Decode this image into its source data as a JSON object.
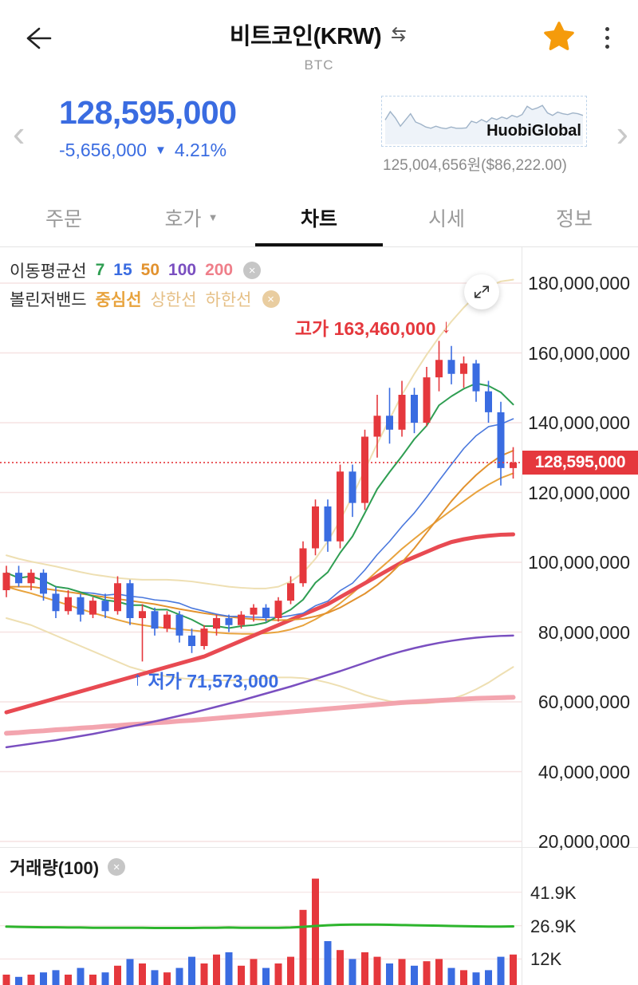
{
  "header": {
    "title": "비트코인(KRW)",
    "subtitle": "BTC"
  },
  "icons": {
    "close": "×",
    "caret_down": "▼",
    "triangle_down": "▼",
    "arrow_down": "↓",
    "arrow_up": "↑",
    "chevron_left": "‹",
    "chevron_right": "›"
  },
  "price": {
    "current": "128,595,000",
    "change": "-5,656,000",
    "change_pct": "4.21%",
    "exchange": "HuobiGlobal",
    "reference": "125,004,656원($86,222.00)"
  },
  "tabs": [
    {
      "label": "주문"
    },
    {
      "label": "호가"
    },
    {
      "label": "차트"
    },
    {
      "label": "시세"
    },
    {
      "label": "정보"
    }
  ],
  "active_tab": "차트",
  "legend": {
    "ma_title": "이동평균선",
    "ma_periods": [
      "7",
      "15",
      "50",
      "100",
      "200"
    ],
    "boll_title": "볼린저밴드",
    "boll_items": [
      "중심선",
      "상한선",
      "하한선"
    ]
  },
  "annotations": {
    "high_label": "고가 163,460,000",
    "low_label": "저가 71,573,000"
  },
  "axis": {
    "main": [
      "180,000,000",
      "160,000,000",
      "140,000,000",
      "120,000,000",
      "100,000,000",
      "80,000,000",
      "60,000,000",
      "40,000,000",
      "20,000,000"
    ],
    "volume": [
      "41.9K",
      "26.9K",
      "12K"
    ]
  },
  "price_tag": "128,595,000",
  "volume_panel": {
    "label": "거래량(100)"
  },
  "colors": {
    "accent_blue": "#3a6ce1",
    "up_red": "#e5383d",
    "down_blue": "#3a6ce1",
    "price_tag_bg": "#e5383d",
    "grid_pink": "#f6e2e2",
    "ma7_green": "#2f9e52",
    "ma15_blue": "#4a78dd",
    "ma50_orange": "#e2922e",
    "ma100_purple": "#7a4fc0",
    "ma200_pink": "#f29ba6",
    "trend_red": "#e84a52",
    "boll_band": "#eedfb2",
    "boll_center": "#e8a33d",
    "vol_ma_green": "#2db52d",
    "star_orange": "#f59b0b",
    "spark_line": "#9fb3c8"
  },
  "chart_data": {
    "type": "candlestick+volume",
    "y_unit": "KRW millions",
    "y_range_main": [
      20,
      185
    ],
    "gridlines": [
      20,
      40,
      60,
      80,
      100,
      120,
      140,
      160,
      180
    ],
    "current_price": 128.595,
    "high_marker": 163.46,
    "low_marker": 71.573,
    "candles": [
      {
        "o": 92,
        "h": 99,
        "l": 90,
        "c": 97
      },
      {
        "o": 97,
        "h": 99,
        "l": 93,
        "c": 94
      },
      {
        "o": 94,
        "h": 98,
        "l": 92,
        "c": 97
      },
      {
        "o": 97,
        "h": 98,
        "l": 89,
        "c": 91
      },
      {
        "o": 91,
        "h": 93,
        "l": 84,
        "c": 86
      },
      {
        "o": 86,
        "h": 92,
        "l": 85,
        "c": 90
      },
      {
        "o": 90,
        "h": 91,
        "l": 83,
        "c": 85
      },
      {
        "o": 85,
        "h": 90,
        "l": 84,
        "c": 89
      },
      {
        "o": 89,
        "h": 91,
        "l": 84,
        "c": 86
      },
      {
        "o": 86,
        "h": 96,
        "l": 85,
        "c": 94
      },
      {
        "o": 94,
        "h": 95,
        "l": 82,
        "c": 84
      },
      {
        "o": 84,
        "h": 88,
        "l": 71.573,
        "c": 86
      },
      {
        "o": 86,
        "h": 87,
        "l": 79,
        "c": 81
      },
      {
        "o": 81,
        "h": 86,
        "l": 80,
        "c": 85
      },
      {
        "o": 85,
        "h": 86,
        "l": 77,
        "c": 79
      },
      {
        "o": 79,
        "h": 81,
        "l": 74,
        "c": 76
      },
      {
        "o": 76,
        "h": 82,
        "l": 75,
        "c": 81
      },
      {
        "o": 81,
        "h": 85,
        "l": 79,
        "c": 84
      },
      {
        "o": 84,
        "h": 85,
        "l": 80,
        "c": 82
      },
      {
        "o": 82,
        "h": 86,
        "l": 81,
        "c": 85
      },
      {
        "o": 85,
        "h": 88,
        "l": 83,
        "c": 87
      },
      {
        "o": 87,
        "h": 88,
        "l": 83,
        "c": 84
      },
      {
        "o": 84,
        "h": 90,
        "l": 83,
        "c": 89
      },
      {
        "o": 89,
        "h": 96,
        "l": 88,
        "c": 94
      },
      {
        "o": 94,
        "h": 106,
        "l": 93,
        "c": 104
      },
      {
        "o": 104,
        "h": 118,
        "l": 102,
        "c": 116
      },
      {
        "o": 116,
        "h": 118,
        "l": 103,
        "c": 106
      },
      {
        "o": 106,
        "h": 128,
        "l": 104,
        "c": 126
      },
      {
        "o": 126,
        "h": 128,
        "l": 113,
        "c": 117
      },
      {
        "o": 117,
        "h": 138,
        "l": 115,
        "c": 136
      },
      {
        "o": 136,
        "h": 148,
        "l": 130,
        "c": 142
      },
      {
        "o": 142,
        "h": 150,
        "l": 134,
        "c": 138
      },
      {
        "o": 138,
        "h": 152,
        "l": 136,
        "c": 148
      },
      {
        "o": 148,
        "h": 150,
        "l": 137,
        "c": 140
      },
      {
        "o": 140,
        "h": 156,
        "l": 139,
        "c": 153
      },
      {
        "o": 153,
        "h": 163.46,
        "l": 149,
        "c": 158
      },
      {
        "o": 158,
        "h": 162,
        "l": 151,
        "c": 154
      },
      {
        "o": 154,
        "h": 159,
        "l": 150,
        "c": 157
      },
      {
        "o": 157,
        "h": 158,
        "l": 146,
        "c": 149
      },
      {
        "o": 149,
        "h": 152,
        "l": 140,
        "c": 143
      },
      {
        "o": 143,
        "h": 146,
        "l": 122,
        "c": 127
      },
      {
        "o": 127,
        "h": 133,
        "l": 124,
        "c": 128.595
      }
    ],
    "volumes_k": [
      5,
      4,
      5,
      6,
      7,
      5,
      8,
      5,
      6,
      9,
      12,
      10,
      7,
      6,
      8,
      13,
      10,
      14,
      15,
      9,
      12,
      8,
      10,
      13,
      34,
      48,
      20,
      16,
      12,
      15,
      13,
      10,
      12,
      9,
      11,
      12,
      8,
      7,
      6,
      7,
      13,
      14
    ],
    "volume_axis_k": [
      41.9,
      26.9,
      12
    ],
    "vol_ma": [
      26.5,
      26.4,
      26.3,
      26.2,
      26.2,
      26.1,
      26.1,
      26.0,
      26.0,
      26.0,
      26.0,
      26.0,
      25.9,
      25.9,
      25.9,
      25.9,
      26.0,
      26.0,
      26.1,
      26.0,
      26.0,
      26.0,
      26.0,
      26.1,
      26.4,
      26.8,
      27.1,
      27.3,
      27.4,
      27.4,
      27.4,
      27.3,
      27.2,
      27.1,
      27.0,
      26.9,
      26.8,
      26.7,
      26.6,
      26.5,
      26.5,
      26.6
    ],
    "lines": {
      "ma50": [
        93,
        93,
        93,
        92.5,
        92,
        91.5,
        91,
        90.5,
        90,
        89.5,
        89,
        88.5,
        88,
        87.3,
        86.6,
        86,
        85.4,
        84.9,
        84.4,
        84,
        83.7,
        83.5,
        83.4,
        83.5,
        83.8,
        84.5,
        85.5,
        87,
        89,
        91,
        93.5,
        96.5,
        100,
        104,
        108.5,
        113,
        117.5,
        121.5,
        125,
        128,
        130.5,
        132
      ],
      "ma100": [
        47,
        47.5,
        48,
        48.5,
        49,
        49.6,
        50.2,
        50.8,
        51.5,
        52.2,
        52.9,
        53.6,
        54.4,
        55.2,
        56,
        56.8,
        57.7,
        58.6,
        59.5,
        60.4,
        61.4,
        62.4,
        63.4,
        64.4,
        65.5,
        66.6,
        67.7,
        68.8,
        70,
        71.2,
        72.4,
        73.5,
        74.5,
        75.4,
        76.2,
        76.9,
        77.5,
        78,
        78.4,
        78.7,
        78.9,
        79
      ],
      "ma200": [
        51,
        51.2,
        51.5,
        51.7,
        52,
        52.2,
        52.5,
        52.7,
        53,
        53.2,
        53.5,
        53.7,
        54,
        54.2,
        54.5,
        54.7,
        55,
        55.3,
        55.6,
        55.9,
        56.2,
        56.5,
        56.8,
        57.1,
        57.4,
        57.7,
        58,
        58.3,
        58.6,
        58.9,
        59.2,
        59.5,
        59.8,
        60,
        60.2,
        60.4,
        60.6,
        60.8,
        61,
        61.1,
        61.2,
        61.3
      ],
      "trend": [
        57,
        58,
        59,
        60,
        61,
        62,
        63,
        64,
        65,
        66,
        67,
        68,
        69,
        70,
        71,
        72,
        73,
        74.5,
        76,
        77.5,
        79,
        80.5,
        82,
        83.5,
        85,
        86.5,
        88,
        90,
        92,
        94,
        96,
        98,
        100,
        101.5,
        103,
        104.5,
        105.8,
        106.6,
        107.2,
        107.6,
        107.9,
        108
      ],
      "boll_upper": [
        102,
        101,
        100.2,
        99.5,
        98.8,
        98,
        97.2,
        96.5,
        96,
        95.5,
        95.2,
        95,
        95,
        95,
        94.8,
        94.5,
        94,
        93.5,
        93,
        92.7,
        92.5,
        92.5,
        93,
        94.5,
        97,
        101,
        106,
        112,
        119,
        126.5,
        134,
        141,
        148,
        154,
        159.5,
        164.5,
        169,
        173,
        176.5,
        179,
        180.5,
        181
      ],
      "boll_lower": [
        84,
        83,
        82,
        80.5,
        79,
        77.5,
        76,
        74.5,
        73,
        71.5,
        70,
        69,
        68,
        67.3,
        66.8,
        66.5,
        66.3,
        66.2,
        66.2,
        66.3,
        66.5,
        66.8,
        67,
        67,
        66.8,
        66.3,
        65.5,
        64.5,
        63.3,
        62,
        61,
        60.2,
        59.7,
        59.5,
        59.6,
        60,
        60.8,
        62,
        63.6,
        65.5,
        67.8,
        70
      ]
    },
    "sparkline": [
      55,
      75,
      60,
      40,
      55,
      70,
      50,
      45,
      38,
      35,
      40,
      36,
      34,
      38,
      35,
      35,
      36,
      52,
      48,
      56,
      50,
      60,
      56,
      62,
      58,
      66,
      62,
      68,
      88,
      80,
      84,
      90,
      72,
      66,
      74,
      70,
      68,
      72,
      70,
      66
    ]
  }
}
